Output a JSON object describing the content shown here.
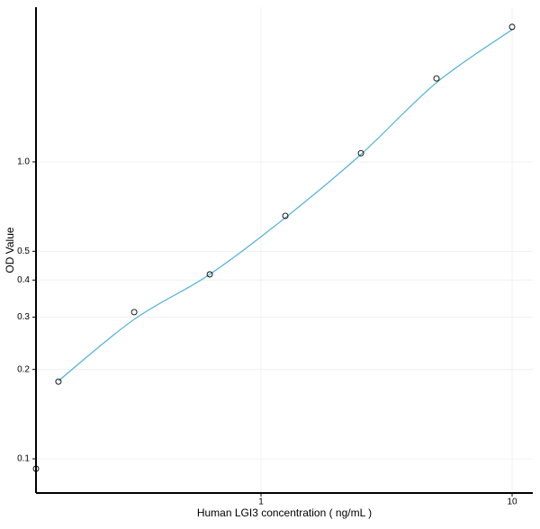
{
  "chart_data": {
    "type": "scatter",
    "xlabel": "Human LGI3 concentration ( ng/mL )",
    "ylabel": "OD Value",
    "x": [
      0.127,
      0.156,
      0.3125,
      0.625,
      1.25,
      2.5,
      5,
      10
    ],
    "values": [
      0.0926,
      0.182,
      0.312,
      0.418,
      0.658,
      1.07,
      1.91,
      2.85
    ],
    "fit": {
      "x": [
        0.156,
        0.3125,
        0.625,
        1.25,
        2.5,
        5,
        10
      ],
      "values": [
        0.183,
        0.295,
        0.418,
        0.649,
        1.06,
        1.85,
        2.79
      ],
      "color": "#4cb1d8"
    },
    "xlim": [
      0.127,
      12.09
    ],
    "ylim": [
      0.0767,
      3.32
    ],
    "xticks": [
      1,
      10
    ],
    "yticks": [
      0.1,
      0.2,
      0.3,
      0.4,
      0.5,
      {
        "value": 1,
        "label": "1.0"
      }
    ],
    "xscale": "log",
    "yscale": "log",
    "grid": true
  }
}
